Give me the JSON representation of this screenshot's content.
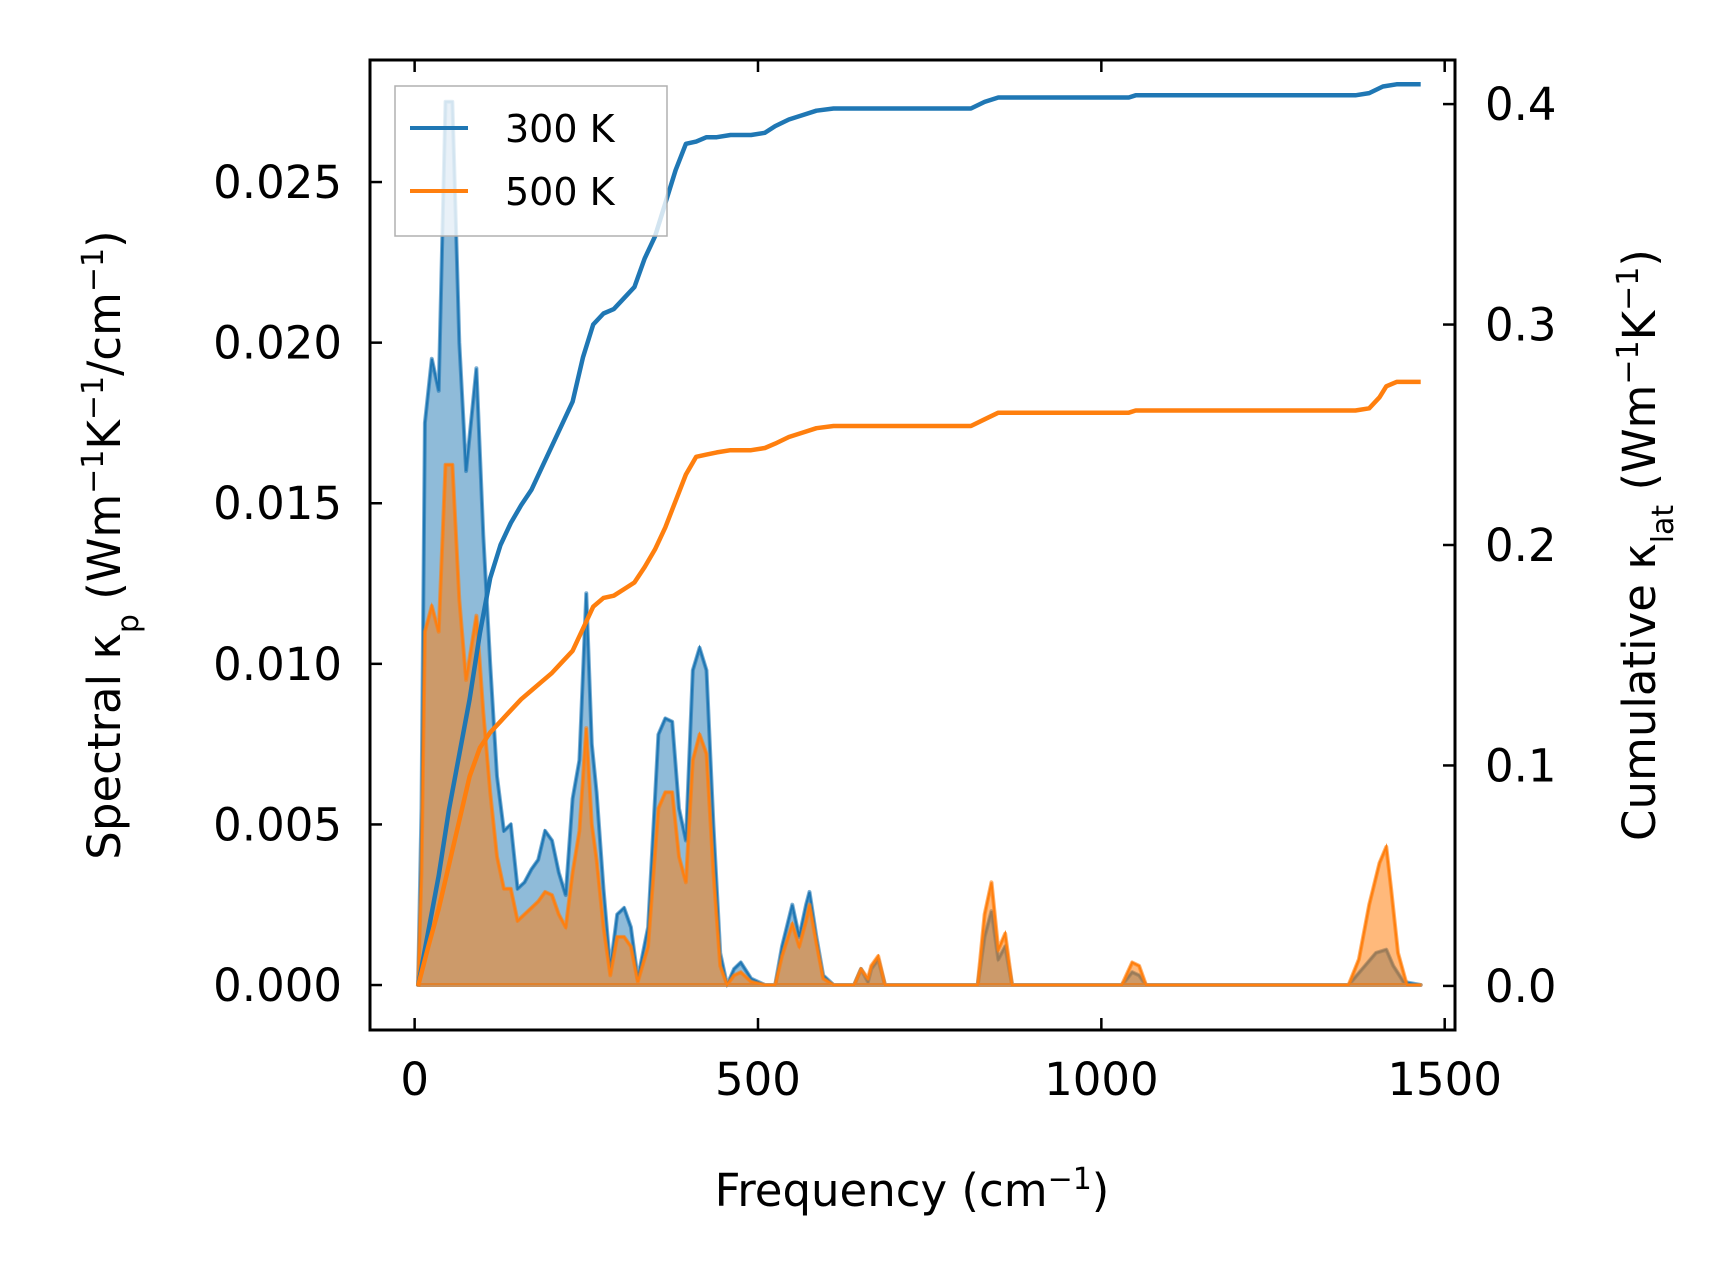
{
  "chart_data": {
    "type": "line",
    "xlabel": {
      "main": "Frequency (cm",
      "sup": "−1",
      "end": ")"
    },
    "ylabel_left": {
      "pre": "Spectral κ",
      "sub": "p",
      "mid": " (Wm",
      "sup1": "−1",
      "mid2": "K",
      "sup2": "−1",
      "mid3": "/cm",
      "sup3": "−1",
      "end": ")"
    },
    "ylabel_right": {
      "pre": "Cumulative κ",
      "sub": "lat",
      "mid": " (Wm",
      "sup1": "−1",
      "mid2": "K",
      "sup2": "−1",
      "end": ")"
    },
    "xlim": [
      -65,
      1515
    ],
    "ylim_left": [
      -0.0014,
      0.0288
    ],
    "ylim_right": [
      -0.02,
      0.42
    ],
    "x_ticks": [
      0,
      500,
      1000,
      1500
    ],
    "x_tick_labels": [
      "0",
      "500",
      "1000",
      "1500"
    ],
    "y_left_ticks": [
      0,
      0.005,
      0.01,
      0.015,
      0.02,
      0.025
    ],
    "y_left_tick_labels": [
      "0.000",
      "0.005",
      "0.010",
      "0.015",
      "0.020",
      "0.025"
    ],
    "y_right_ticks": [
      0,
      0.1,
      0.2,
      0.3,
      0.4
    ],
    "y_right_tick_labels": [
      "0.0",
      "0.1",
      "0.2",
      "0.3",
      "0.4"
    ],
    "legend_position": "top-left",
    "series": [
      {
        "name": "300 K",
        "color": "#1f77b4",
        "spectral": [
          [
            5,
            0
          ],
          [
            10,
            0.0055
          ],
          [
            15,
            0.0175
          ],
          [
            25,
            0.0195
          ],
          [
            35,
            0.0185
          ],
          [
            45,
            0.0275
          ],
          [
            55,
            0.0275
          ],
          [
            65,
            0.02
          ],
          [
            75,
            0.016
          ],
          [
            90,
            0.0192
          ],
          [
            100,
            0.014
          ],
          [
            110,
            0.01
          ],
          [
            120,
            0.0065
          ],
          [
            130,
            0.0048
          ],
          [
            140,
            0.005
          ],
          [
            150,
            0.003
          ],
          [
            160,
            0.0032
          ],
          [
            170,
            0.0036
          ],
          [
            180,
            0.0039
          ],
          [
            190,
            0.0048
          ],
          [
            200,
            0.0045
          ],
          [
            210,
            0.0035
          ],
          [
            220,
            0.0028
          ],
          [
            230,
            0.0058
          ],
          [
            240,
            0.007
          ],
          [
            250,
            0.0122
          ],
          [
            258,
            0.0075
          ],
          [
            265,
            0.006
          ],
          [
            275,
            0.003
          ],
          [
            285,
            0.0005
          ],
          [
            295,
            0.0022
          ],
          [
            305,
            0.0024
          ],
          [
            315,
            0.0018
          ],
          [
            325,
            0.0002
          ],
          [
            340,
            0.0018
          ],
          [
            355,
            0.0078
          ],
          [
            365,
            0.0083
          ],
          [
            375,
            0.0082
          ],
          [
            385,
            0.0055
          ],
          [
            395,
            0.0045
          ],
          [
            405,
            0.0098
          ],
          [
            415,
            0.0105
          ],
          [
            425,
            0.0098
          ],
          [
            435,
            0.005
          ],
          [
            445,
            0.001
          ],
          [
            455,
            0
          ],
          [
            465,
            0.0005
          ],
          [
            475,
            0.0007
          ],
          [
            490,
            0.0002
          ],
          [
            510,
            0
          ],
          [
            525,
            0
          ],
          [
            535,
            0.0012
          ],
          [
            550,
            0.0025
          ],
          [
            560,
            0.0015
          ],
          [
            570,
            0.0025
          ],
          [
            575,
            0.0029
          ],
          [
            585,
            0.0015
          ],
          [
            595,
            0.0003
          ],
          [
            610,
            0
          ],
          [
            640,
            0
          ],
          [
            650,
            0.0005
          ],
          [
            660,
            0.0001
          ],
          [
            665,
            0.0005
          ],
          [
            675,
            0.0008
          ],
          [
            685,
            0
          ],
          [
            820,
            0
          ],
          [
            830,
            0.0015
          ],
          [
            840,
            0.0023
          ],
          [
            850,
            0.0008
          ],
          [
            860,
            0.0012
          ],
          [
            870,
            0
          ],
          [
            1030,
            0
          ],
          [
            1045,
            0.0004
          ],
          [
            1055,
            0.0003
          ],
          [
            1065,
            0
          ],
          [
            1360,
            0
          ],
          [
            1380,
            0.0005
          ],
          [
            1400,
            0.001
          ],
          [
            1415,
            0.0011
          ],
          [
            1425,
            0.0006
          ],
          [
            1440,
            0.0001
          ],
          [
            1465,
            0
          ]
        ],
        "cumulative": [
          [
            5,
            0
          ],
          [
            20,
            0.025
          ],
          [
            35,
            0.05
          ],
          [
            50,
            0.08
          ],
          [
            65,
            0.105
          ],
          [
            80,
            0.13
          ],
          [
            95,
            0.16
          ],
          [
            110,
            0.185
          ],
          [
            125,
            0.2
          ],
          [
            140,
            0.21
          ],
          [
            155,
            0.218
          ],
          [
            170,
            0.225
          ],
          [
            185,
            0.235
          ],
          [
            200,
            0.245
          ],
          [
            215,
            0.255
          ],
          [
            230,
            0.265
          ],
          [
            245,
            0.285
          ],
          [
            260,
            0.3
          ],
          [
            275,
            0.305
          ],
          [
            290,
            0.307
          ],
          [
            305,
            0.312
          ],
          [
            320,
            0.317
          ],
          [
            335,
            0.33
          ],
          [
            350,
            0.34
          ],
          [
            365,
            0.355
          ],
          [
            380,
            0.37
          ],
          [
            395,
            0.382
          ],
          [
            410,
            0.383
          ],
          [
            425,
            0.385
          ],
          [
            440,
            0.385
          ],
          [
            460,
            0.386
          ],
          [
            490,
            0.386
          ],
          [
            510,
            0.387
          ],
          [
            525,
            0.39
          ],
          [
            545,
            0.393
          ],
          [
            565,
            0.395
          ],
          [
            585,
            0.397
          ],
          [
            610,
            0.398
          ],
          [
            650,
            0.398
          ],
          [
            810,
            0.398
          ],
          [
            830,
            0.401
          ],
          [
            850,
            0.403
          ],
          [
            870,
            0.403
          ],
          [
            1040,
            0.403
          ],
          [
            1050,
            0.404
          ],
          [
            1370,
            0.404
          ],
          [
            1390,
            0.405
          ],
          [
            1410,
            0.408
          ],
          [
            1430,
            0.409
          ],
          [
            1465,
            0.409
          ]
        ]
      },
      {
        "name": "500 K",
        "color": "#ff7f0e",
        "spectral": [
          [
            5,
            0
          ],
          [
            10,
            0.0035
          ],
          [
            15,
            0.011
          ],
          [
            25,
            0.0118
          ],
          [
            35,
            0.011
          ],
          [
            45,
            0.0162
          ],
          [
            55,
            0.0162
          ],
          [
            65,
            0.012
          ],
          [
            75,
            0.0095
          ],
          [
            90,
            0.0115
          ],
          [
            100,
            0.0085
          ],
          [
            110,
            0.006
          ],
          [
            120,
            0.004
          ],
          [
            130,
            0.003
          ],
          [
            140,
            0.003
          ],
          [
            150,
            0.002
          ],
          [
            160,
            0.0022
          ],
          [
            170,
            0.0024
          ],
          [
            180,
            0.0026
          ],
          [
            190,
            0.0029
          ],
          [
            200,
            0.0028
          ],
          [
            210,
            0.0022
          ],
          [
            220,
            0.0018
          ],
          [
            230,
            0.0035
          ],
          [
            240,
            0.0048
          ],
          [
            250,
            0.008
          ],
          [
            258,
            0.005
          ],
          [
            265,
            0.0039
          ],
          [
            275,
            0.0018
          ],
          [
            285,
            0.0003
          ],
          [
            295,
            0.0015
          ],
          [
            305,
            0.0015
          ],
          [
            315,
            0.0012
          ],
          [
            325,
            0.0001
          ],
          [
            340,
            0.0012
          ],
          [
            355,
            0.0055
          ],
          [
            365,
            0.006
          ],
          [
            375,
            0.006
          ],
          [
            385,
            0.004
          ],
          [
            395,
            0.0032
          ],
          [
            405,
            0.007
          ],
          [
            415,
            0.0078
          ],
          [
            425,
            0.0072
          ],
          [
            435,
            0.0035
          ],
          [
            445,
            0.0006
          ],
          [
            455,
            0
          ],
          [
            465,
            0.0003
          ],
          [
            475,
            0.0004
          ],
          [
            490,
            0.0001
          ],
          [
            510,
            0
          ],
          [
            525,
            0
          ],
          [
            535,
            0.0009
          ],
          [
            550,
            0.0019
          ],
          [
            560,
            0.0012
          ],
          [
            570,
            0.002
          ],
          [
            575,
            0.0025
          ],
          [
            585,
            0.0013
          ],
          [
            595,
            0.0002
          ],
          [
            610,
            0
          ],
          [
            640,
            0
          ],
          [
            650,
            0.0005
          ],
          [
            660,
            0.0002
          ],
          [
            665,
            0.0006
          ],
          [
            675,
            0.0009
          ],
          [
            685,
            0
          ],
          [
            820,
            0
          ],
          [
            830,
            0.0022
          ],
          [
            840,
            0.0032
          ],
          [
            850,
            0.0011
          ],
          [
            860,
            0.0016
          ],
          [
            870,
            0
          ],
          [
            1030,
            0
          ],
          [
            1045,
            0.0007
          ],
          [
            1055,
            0.0006
          ],
          [
            1065,
            0
          ],
          [
            1360,
            0
          ],
          [
            1375,
            0.0008
          ],
          [
            1390,
            0.0025
          ],
          [
            1405,
            0.0038
          ],
          [
            1415,
            0.0043
          ],
          [
            1422,
            0.003
          ],
          [
            1432,
            0.001
          ],
          [
            1445,
            0
          ],
          [
            1465,
            0
          ]
        ],
        "cumulative": [
          [
            5,
            0
          ],
          [
            20,
            0.018
          ],
          [
            35,
            0.035
          ],
          [
            50,
            0.055
          ],
          [
            65,
            0.075
          ],
          [
            80,
            0.095
          ],
          [
            95,
            0.108
          ],
          [
            110,
            0.115
          ],
          [
            125,
            0.12
          ],
          [
            140,
            0.125
          ],
          [
            155,
            0.13
          ],
          [
            170,
            0.134
          ],
          [
            185,
            0.138
          ],
          [
            200,
            0.142
          ],
          [
            215,
            0.147
          ],
          [
            230,
            0.152
          ],
          [
            245,
            0.162
          ],
          [
            260,
            0.172
          ],
          [
            275,
            0.176
          ],
          [
            290,
            0.177
          ],
          [
            305,
            0.18
          ],
          [
            320,
            0.183
          ],
          [
            335,
            0.19
          ],
          [
            350,
            0.198
          ],
          [
            365,
            0.208
          ],
          [
            380,
            0.22
          ],
          [
            395,
            0.232
          ],
          [
            410,
            0.24
          ],
          [
            425,
            0.241
          ],
          [
            440,
            0.242
          ],
          [
            460,
            0.243
          ],
          [
            490,
            0.243
          ],
          [
            510,
            0.244
          ],
          [
            525,
            0.246
          ],
          [
            545,
            0.249
          ],
          [
            565,
            0.251
          ],
          [
            585,
            0.253
          ],
          [
            610,
            0.254
          ],
          [
            650,
            0.254
          ],
          [
            810,
            0.254
          ],
          [
            830,
            0.257
          ],
          [
            850,
            0.26
          ],
          [
            870,
            0.26
          ],
          [
            1040,
            0.26
          ],
          [
            1050,
            0.261
          ],
          [
            1370,
            0.261
          ],
          [
            1390,
            0.262
          ],
          [
            1405,
            0.267
          ],
          [
            1415,
            0.272
          ],
          [
            1430,
            0.274
          ],
          [
            1465,
            0.274
          ]
        ]
      }
    ]
  }
}
